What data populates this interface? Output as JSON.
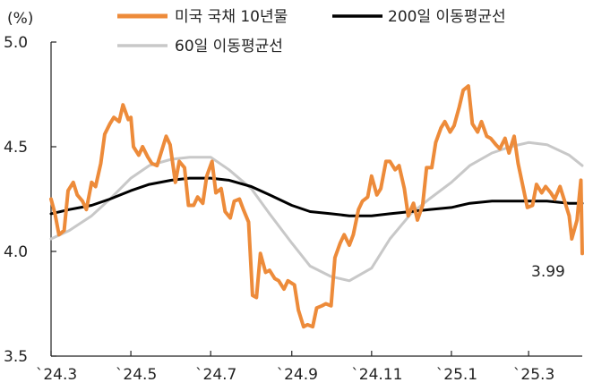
{
  "chart_data": {
    "type": "line",
    "unit_label": "(%)",
    "title": "",
    "xlabel": "",
    "ylabel": "",
    "ylim": [
      3.5,
      5.0
    ],
    "y_ticks": [
      "3.5",
      "4.0",
      "4.5",
      "5.0"
    ],
    "x_range": [
      "2024-03-01",
      "2025-04-11"
    ],
    "x_ticks": [
      {
        "date": "2024-03-01",
        "label": "`24.3"
      },
      {
        "date": "2024-05-01",
        "label": "`24.5"
      },
      {
        "date": "2024-07-01",
        "label": "`24.7"
      },
      {
        "date": "2024-09-01",
        "label": "`24.9"
      },
      {
        "date": "2024-11-01",
        "label": "`24.11"
      },
      {
        "date": "2025-01-01",
        "label": "`25.1"
      },
      {
        "date": "2025-03-01",
        "label": "`25.3"
      }
    ],
    "grid": false,
    "legend_position": "top",
    "end_annotation": "3.99",
    "series": [
      {
        "name": "미국 국채 10년물",
        "color": "#ED8B3A",
        "points": [
          [
            "2024-03-01",
            4.25
          ],
          [
            "2024-03-04",
            4.18
          ],
          [
            "2024-03-07",
            4.08
          ],
          [
            "2024-03-11",
            4.1
          ],
          [
            "2024-03-14",
            4.29
          ],
          [
            "2024-03-18",
            4.33
          ],
          [
            "2024-03-21",
            4.27
          ],
          [
            "2024-03-25",
            4.24
          ],
          [
            "2024-03-28",
            4.2
          ],
          [
            "2024-04-01",
            4.33
          ],
          [
            "2024-04-04",
            4.31
          ],
          [
            "2024-04-08",
            4.42
          ],
          [
            "2024-04-11",
            4.56
          ],
          [
            "2024-04-15",
            4.61
          ],
          [
            "2024-04-18",
            4.64
          ],
          [
            "2024-04-22",
            4.62
          ],
          [
            "2024-04-25",
            4.7
          ],
          [
            "2024-04-29",
            4.63
          ],
          [
            "2024-05-01",
            4.64
          ],
          [
            "2024-05-03",
            4.5
          ],
          [
            "2024-05-07",
            4.46
          ],
          [
            "2024-05-10",
            4.5
          ],
          [
            "2024-05-14",
            4.45
          ],
          [
            "2024-05-17",
            4.42
          ],
          [
            "2024-05-21",
            4.41
          ],
          [
            "2024-05-24",
            4.47
          ],
          [
            "2024-05-28",
            4.55
          ],
          [
            "2024-05-31",
            4.51
          ],
          [
            "2024-06-04",
            4.33
          ],
          [
            "2024-06-07",
            4.43
          ],
          [
            "2024-06-11",
            4.4
          ],
          [
            "2024-06-14",
            4.22
          ],
          [
            "2024-06-18",
            4.22
          ],
          [
            "2024-06-21",
            4.26
          ],
          [
            "2024-06-25",
            4.23
          ],
          [
            "2024-06-28",
            4.36
          ],
          [
            "2024-07-02",
            4.43
          ],
          [
            "2024-07-05",
            4.28
          ],
          [
            "2024-07-09",
            4.3
          ],
          [
            "2024-07-12",
            4.19
          ],
          [
            "2024-07-16",
            4.16
          ],
          [
            "2024-07-19",
            4.24
          ],
          [
            "2024-07-23",
            4.25
          ],
          [
            "2024-07-26",
            4.2
          ],
          [
            "2024-07-30",
            4.14
          ],
          [
            "2024-08-02",
            3.79
          ],
          [
            "2024-08-05",
            3.78
          ],
          [
            "2024-08-08",
            3.99
          ],
          [
            "2024-08-12",
            3.9
          ],
          [
            "2024-08-15",
            3.91
          ],
          [
            "2024-08-19",
            3.87
          ],
          [
            "2024-08-22",
            3.86
          ],
          [
            "2024-08-26",
            3.82
          ],
          [
            "2024-08-29",
            3.86
          ],
          [
            "2024-09-03",
            3.84
          ],
          [
            "2024-09-06",
            3.72
          ],
          [
            "2024-09-10",
            3.64
          ],
          [
            "2024-09-13",
            3.65
          ],
          [
            "2024-09-17",
            3.64
          ],
          [
            "2024-09-20",
            3.73
          ],
          [
            "2024-09-24",
            3.74
          ],
          [
            "2024-09-27",
            3.75
          ],
          [
            "2024-10-01",
            3.74
          ],
          [
            "2024-10-04",
            3.97
          ],
          [
            "2024-10-08",
            4.04
          ],
          [
            "2024-10-11",
            4.08
          ],
          [
            "2024-10-15",
            4.03
          ],
          [
            "2024-10-18",
            4.08
          ],
          [
            "2024-10-22",
            4.2
          ],
          [
            "2024-10-25",
            4.24
          ],
          [
            "2024-10-29",
            4.26
          ],
          [
            "2024-11-01",
            4.36
          ],
          [
            "2024-11-05",
            4.27
          ],
          [
            "2024-11-08",
            4.3
          ],
          [
            "2024-11-12",
            4.43
          ],
          [
            "2024-11-15",
            4.43
          ],
          [
            "2024-11-19",
            4.39
          ],
          [
            "2024-11-22",
            4.41
          ],
          [
            "2024-11-26",
            4.3
          ],
          [
            "2024-11-29",
            4.17
          ],
          [
            "2024-12-03",
            4.23
          ],
          [
            "2024-12-06",
            4.15
          ],
          [
            "2024-12-10",
            4.22
          ],
          [
            "2024-12-13",
            4.4
          ],
          [
            "2024-12-17",
            4.4
          ],
          [
            "2024-12-20",
            4.52
          ],
          [
            "2024-12-24",
            4.59
          ],
          [
            "2024-12-27",
            4.62
          ],
          [
            "2024-12-31",
            4.57
          ],
          [
            "2025-01-03",
            4.6
          ],
          [
            "2025-01-07",
            4.69
          ],
          [
            "2025-01-10",
            4.77
          ],
          [
            "2025-01-14",
            4.79
          ],
          [
            "2025-01-17",
            4.61
          ],
          [
            "2025-01-21",
            4.57
          ],
          [
            "2025-01-24",
            4.62
          ],
          [
            "2025-01-28",
            4.55
          ],
          [
            "2025-01-31",
            4.54
          ],
          [
            "2025-02-04",
            4.51
          ],
          [
            "2025-02-07",
            4.49
          ],
          [
            "2025-02-11",
            4.54
          ],
          [
            "2025-02-14",
            4.47
          ],
          [
            "2025-02-18",
            4.55
          ],
          [
            "2025-02-21",
            4.42
          ],
          [
            "2025-02-25",
            4.3
          ],
          [
            "2025-02-28",
            4.21
          ],
          [
            "2025-03-04",
            4.22
          ],
          [
            "2025-03-07",
            4.32
          ],
          [
            "2025-03-11",
            4.28
          ],
          [
            "2025-03-14",
            4.31
          ],
          [
            "2025-03-18",
            4.28
          ],
          [
            "2025-03-21",
            4.25
          ],
          [
            "2025-03-25",
            4.31
          ],
          [
            "2025-03-28",
            4.25
          ],
          [
            "2025-04-01",
            4.17
          ],
          [
            "2025-04-03",
            4.06
          ],
          [
            "2025-04-07",
            4.15
          ],
          [
            "2025-04-09",
            4.28
          ],
          [
            "2025-04-10",
            4.34
          ],
          [
            "2025-04-11",
            3.99
          ]
        ]
      },
      {
        "name": "200일 이동평균선",
        "color": "#000000",
        "points": [
          [
            "2024-03-01",
            4.18
          ],
          [
            "2024-03-15",
            4.2
          ],
          [
            "2024-04-01",
            4.22
          ],
          [
            "2024-04-15",
            4.25
          ],
          [
            "2024-05-01",
            4.29
          ],
          [
            "2024-05-15",
            4.32
          ],
          [
            "2024-06-01",
            4.34
          ],
          [
            "2024-06-15",
            4.35
          ],
          [
            "2024-07-01",
            4.35
          ],
          [
            "2024-07-15",
            4.34
          ],
          [
            "2024-08-01",
            4.31
          ],
          [
            "2024-08-15",
            4.27
          ],
          [
            "2024-09-01",
            4.22
          ],
          [
            "2024-09-15",
            4.19
          ],
          [
            "2024-10-01",
            4.18
          ],
          [
            "2024-10-15",
            4.17
          ],
          [
            "2024-11-01",
            4.17
          ],
          [
            "2024-11-15",
            4.18
          ],
          [
            "2024-12-01",
            4.19
          ],
          [
            "2024-12-15",
            4.2
          ],
          [
            "2025-01-01",
            4.21
          ],
          [
            "2025-01-15",
            4.23
          ],
          [
            "2025-02-01",
            4.24
          ],
          [
            "2025-02-15",
            4.24
          ],
          [
            "2025-03-01",
            4.24
          ],
          [
            "2025-03-15",
            4.24
          ],
          [
            "2025-04-01",
            4.23
          ],
          [
            "2025-04-11",
            4.23
          ]
        ]
      },
      {
        "name": "60일 이동평균선",
        "color": "#C8C8C8",
        "points": [
          [
            "2024-03-01",
            4.06
          ],
          [
            "2024-03-15",
            4.1
          ],
          [
            "2024-04-01",
            4.17
          ],
          [
            "2024-04-15",
            4.25
          ],
          [
            "2024-05-01",
            4.35
          ],
          [
            "2024-05-15",
            4.41
          ],
          [
            "2024-06-01",
            4.44
          ],
          [
            "2024-06-15",
            4.45
          ],
          [
            "2024-07-01",
            4.45
          ],
          [
            "2024-07-15",
            4.39
          ],
          [
            "2024-08-01",
            4.3
          ],
          [
            "2024-08-15",
            4.18
          ],
          [
            "2024-09-01",
            4.04
          ],
          [
            "2024-09-15",
            3.93
          ],
          [
            "2024-10-01",
            3.88
          ],
          [
            "2024-10-15",
            3.86
          ],
          [
            "2024-11-01",
            3.92
          ],
          [
            "2024-11-15",
            4.06
          ],
          [
            "2024-12-01",
            4.18
          ],
          [
            "2024-12-15",
            4.25
          ],
          [
            "2025-01-01",
            4.33
          ],
          [
            "2025-01-15",
            4.41
          ],
          [
            "2025-02-01",
            4.47
          ],
          [
            "2025-02-15",
            4.5
          ],
          [
            "2025-03-01",
            4.52
          ],
          [
            "2025-03-15",
            4.51
          ],
          [
            "2025-04-01",
            4.46
          ],
          [
            "2025-04-11",
            4.41
          ]
        ]
      }
    ]
  }
}
